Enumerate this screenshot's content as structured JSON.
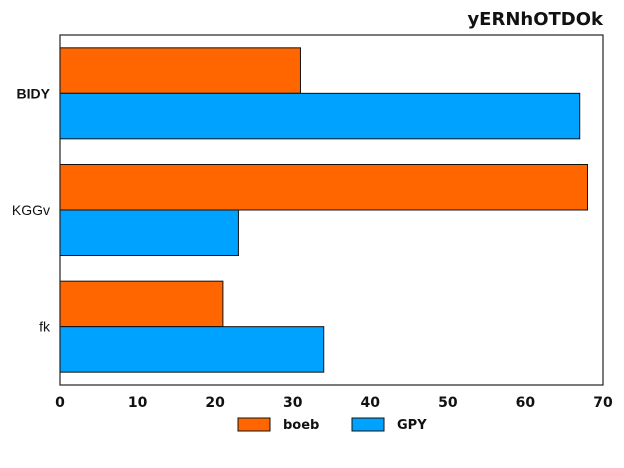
{
  "chart_data": {
    "type": "bar",
    "orientation": "horizontal",
    "title": "yERNhOTDOk",
    "categories": [
      "BIDY",
      "KGGv",
      "fk"
    ],
    "series": [
      {
        "name": "boeb",
        "color": "#ff6600",
        "values": [
          31,
          68,
          21
        ]
      },
      {
        "name": "GPY",
        "color": "#00a2ff",
        "values": [
          67,
          23,
          34
        ]
      }
    ],
    "xlim": [
      0,
      70
    ],
    "xticks": [
      "0",
      "10",
      "20",
      "30",
      "40",
      "50",
      "60",
      "70"
    ],
    "grid": false,
    "legend": "bottom-center"
  }
}
